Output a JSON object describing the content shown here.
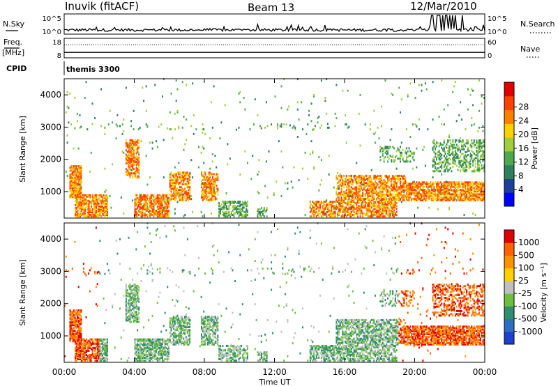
{
  "header": {
    "station": "Inuvik (fitACF)",
    "beam": "Beam 13",
    "date": "12/Mar/2010"
  },
  "strip_panels": {
    "nsky": {
      "label": "N.Sky",
      "tick_top": "10^5",
      "tick_bottom": "10^0"
    },
    "nsearch": {
      "label": "N.Search",
      "tick_top": "10^5",
      "tick_bottom": "10^0"
    },
    "freq": {
      "label_top": "Freq.",
      "label_unit": "[MHz]",
      "tick_top": "18",
      "tick_bottom": "8",
      "value_mhz": 10.8
    },
    "nave": {
      "label": "Nave",
      "tick_top": "60",
      "tick_bottom": "0",
      "value": 40
    },
    "cpid": {
      "label": "CPID",
      "value": "themis 3300"
    }
  },
  "chart_data": [
    {
      "type": "heatmap",
      "name": "power",
      "ylabel": "Slant Range [km]",
      "ylim": [
        180,
        4500
      ],
      "yticks": [
        1000,
        2000,
        3000,
        4000
      ],
      "xlim": [
        0,
        24
      ],
      "xticks": [
        "00:00",
        "04:00",
        "08:00",
        "12:00",
        "16:00",
        "20:00",
        "00:00"
      ],
      "colorbar": {
        "label": "Power [dB]",
        "ticks": [
          "4",
          "8",
          "12",
          "16",
          "20",
          "24",
          "28"
        ],
        "colors": [
          "#0000ff",
          "#1f3f9f",
          "#2f7f5f",
          "#4fa84f",
          "#9fcf3f",
          "#ffcf00",
          "#ff8000",
          "#ff4000",
          "#e00000"
        ]
      }
    },
    {
      "type": "heatmap",
      "name": "velocity",
      "ylabel": "Slant Range [km]",
      "ylim": [
        180,
        4500
      ],
      "yticks": [
        1000,
        2000,
        3000,
        4000
      ],
      "xlim": [
        0,
        24
      ],
      "xticks": [
        "00:00",
        "04:00",
        "08:00",
        "12:00",
        "16:00",
        "20:00",
        "00:00"
      ],
      "xlabel": "Time UT",
      "colorbar": {
        "label": "Velocity [m s⁻¹]",
        "ticks": [
          "1000",
          "500",
          "100",
          "25",
          "-25",
          "-100",
          "-500",
          "-1000"
        ],
        "colors": [
          "#1f3fcf",
          "#2f6fbf",
          "#2f8f6f",
          "#6fbf3f",
          "#c0c0c0",
          "#ffd000",
          "#ff9000",
          "#ff6000",
          "#e00000"
        ]
      }
    }
  ]
}
